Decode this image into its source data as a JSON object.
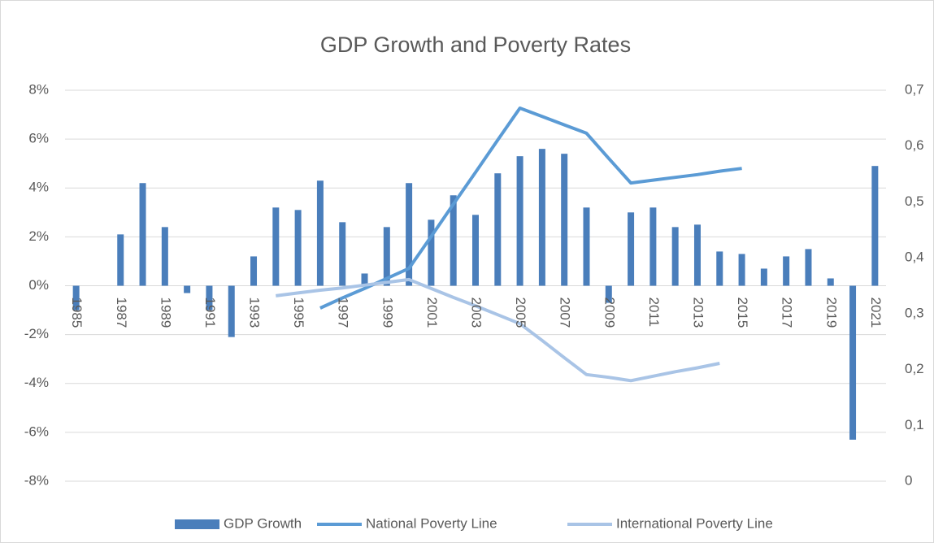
{
  "chart_data": {
    "type": "bar",
    "title": "GDP Growth and Poverty Rates",
    "categories": [
      "1985",
      null,
      "1987",
      null,
      "1989",
      null,
      "1991",
      null,
      "1993",
      null,
      "1995",
      null,
      "1997",
      null,
      "1999",
      null,
      "2001",
      null,
      "2003",
      null,
      "2005",
      null,
      "2007",
      null,
      "2009",
      null,
      "2011",
      null,
      "2013",
      null,
      "2015",
      null,
      "2017",
      null,
      "2019",
      null,
      "2021"
    ],
    "series": [
      {
        "name": "GDP Growth",
        "type": "bar",
        "color": "#4a7ebb",
        "values": [
          -1.0,
          0,
          2.1,
          4.2,
          2.4,
          -0.3,
          -1.0,
          -2.1,
          1.2,
          3.2,
          3.1,
          4.3,
          2.6,
          0.5,
          2.4,
          4.2,
          2.7,
          3.7,
          2.9,
          4.6,
          5.3,
          5.6,
          5.4,
          3.2,
          -0.7,
          3.0,
          3.2,
          2.4,
          2.5,
          1.4,
          1.3,
          0.7,
          1.2,
          1.5,
          0.3,
          -6.3,
          4.9
        ]
      },
      {
        "name": "National Poverty Line",
        "type": "line",
        "axis": "y2",
        "color": "#5b9bd5",
        "values": [
          null,
          null,
          null,
          null,
          null,
          null,
          null,
          null,
          null,
          null,
          null,
          0.31,
          0.328,
          0.345,
          0.363,
          0.381,
          0.438,
          0.496,
          0.553,
          0.611,
          0.668,
          0.653,
          0.638,
          0.623,
          0.578,
          0.534,
          0.539,
          0.544,
          0.549,
          0.555,
          0.56,
          null,
          null,
          null,
          null,
          null,
          null
        ]
      },
      {
        "name": "International Poverty Line",
        "type": "line",
        "axis": "y2",
        "color": "#a9c4e6",
        "values": [
          null,
          null,
          null,
          null,
          null,
          null,
          null,
          null,
          null,
          0.332,
          0.337,
          0.342,
          0.346,
          0.351,
          0.356,
          0.361,
          0.345,
          0.329,
          0.314,
          0.298,
          0.282,
          0.252,
          0.221,
          0.191,
          0.186,
          0.18,
          0.188,
          0.196,
          0.203,
          0.211,
          null,
          null,
          null,
          null,
          null,
          null,
          null
        ]
      }
    ],
    "ylim": [
      -8,
      8
    ],
    "yticks": [
      {
        "value": -8,
        "label": "-8%"
      },
      {
        "value": -6,
        "label": "-6%"
      },
      {
        "value": -4,
        "label": "-4%"
      },
      {
        "value": -2,
        "label": "-2%"
      },
      {
        "value": 0,
        "label": "0%"
      },
      {
        "value": 2,
        "label": "2%"
      },
      {
        "value": 4,
        "label": "4%"
      },
      {
        "value": 6,
        "label": "6%"
      },
      {
        "value": 8,
        "label": "8%"
      }
    ],
    "y2lim": [
      0,
      0.7
    ],
    "y2ticks": [
      0,
      {
        "value": 0.1,
        "label": "0,1"
      },
      {
        "value": 0.2,
        "label": "0,2"
      },
      {
        "value": 0.3,
        "label": "0,3"
      },
      {
        "value": 0.4,
        "label": "0,4"
      },
      {
        "value": 0.5,
        "label": "0,5"
      },
      {
        "value": 0.6,
        "label": "0,6"
      },
      {
        "value": 0.7,
        "label": "0,7"
      }
    ],
    "grid": true,
    "legend": "bottom"
  }
}
